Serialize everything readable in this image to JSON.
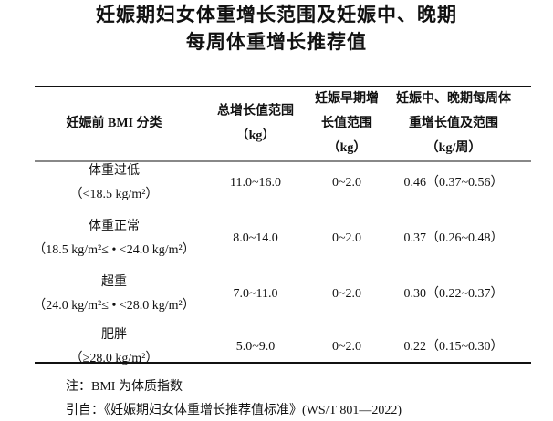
{
  "title": [
    "妊娠期妇女体重增长范围及妊娠中、晚期",
    "每周体重增长推荐值"
  ],
  "table": {
    "header": [
      [
        "妊娠前 BMI 分类"
      ],
      [
        "总增长值范围",
        "（kg）"
      ],
      [
        "妊娠早期增",
        "长值范围",
        "（kg）"
      ],
      [
        "妊娠中、晚期每周体",
        "重增长值及范围",
        "（kg/周）"
      ]
    ],
    "rows": [
      [
        [
          "体重过低",
          "（<18.5 kg/m²）"
        ],
        "11.0~16.0",
        "0~2.0",
        "0.46（0.37~0.56）"
      ],
      [
        [
          "体重正常",
          "（18.5 kg/m²≤ • <24.0 kg/m²）"
        ],
        "8.0~14.0",
        "0~2.0",
        "0.37（0.26~0.48）"
      ],
      [
        [
          "超重",
          "（24.0 kg/m²≤ • <28.0 kg/m²）"
        ],
        "7.0~11.0",
        "0~2.0",
        "0.30（0.22~0.37）"
      ],
      [
        [
          "肥胖",
          "（≥28.0 kg/m²）"
        ],
        "5.0~9.0",
        "0~2.0",
        "0.22（0.15~0.30）"
      ]
    ]
  },
  "notes": [
    "注：BMI 为体质指数",
    "引自：《妊娠期妇女体重增长推荐值标准》(WS/T 801—2022)"
  ]
}
